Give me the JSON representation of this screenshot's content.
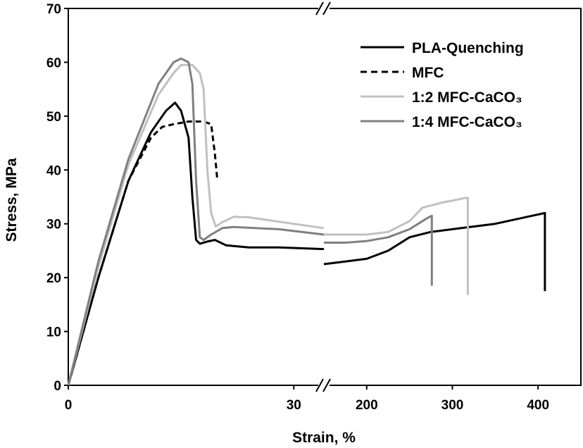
{
  "chart_data": {
    "type": "line",
    "title": "",
    "xlabel": "Strain, %",
    "ylabel": "Stress, MPa",
    "x_axis_break": true,
    "x_segments": [
      {
        "xlim": [
          0,
          34
        ],
        "ticks": [
          "0",
          "30"
        ]
      },
      {
        "xlim": [
          150,
          450
        ],
        "ticks": [
          "200",
          "300",
          "400"
        ]
      }
    ],
    "ylim": [
      0,
      70
    ],
    "yticks": [
      "0",
      "10",
      "20",
      "30",
      "40",
      "50",
      "60",
      "70"
    ],
    "grid": false,
    "legend_position": "top-right",
    "series": [
      {
        "name": "PLA-Quenching",
        "color": "#000000",
        "dash": "solid",
        "points": [
          [
            0,
            0
          ],
          [
            4,
            20
          ],
          [
            8,
            38
          ],
          [
            11,
            47
          ],
          [
            13,
            51
          ],
          [
            14.2,
            52.5
          ],
          [
            15,
            51
          ],
          [
            16,
            46
          ],
          [
            16.5,
            35
          ],
          [
            17,
            27
          ],
          [
            17.5,
            26.3
          ],
          [
            18.5,
            26.7
          ],
          [
            19.5,
            27
          ],
          [
            21,
            26
          ],
          [
            24,
            25.6
          ],
          [
            28,
            25.6
          ],
          [
            34,
            25.3
          ],
          [
            null,
            null
          ],
          [
            150,
            22.5
          ],
          [
            175,
            23
          ],
          [
            200,
            23.5
          ],
          [
            225,
            25
          ],
          [
            250,
            27.5
          ],
          [
            275,
            28.5
          ],
          [
            300,
            29
          ],
          [
            350,
            30
          ],
          [
            408,
            32
          ],
          [
            408,
            17.5
          ]
        ]
      },
      {
        "name": "MFC",
        "color": "#000000",
        "dash": "dashed",
        "points": [
          [
            0,
            0
          ],
          [
            4,
            20
          ],
          [
            8,
            38
          ],
          [
            11,
            46
          ],
          [
            12.5,
            48
          ],
          [
            14,
            48.5
          ],
          [
            16,
            49
          ],
          [
            18,
            49
          ],
          [
            19,
            48.5
          ],
          [
            19.5,
            43
          ],
          [
            19.8,
            38.5
          ]
        ]
      },
      {
        "name": "1:2 MFC-CaCO₃",
        "color": "#c0c0c0",
        "dash": "solid",
        "points": [
          [
            0,
            0
          ],
          [
            4,
            22
          ],
          [
            8,
            41
          ],
          [
            12,
            54
          ],
          [
            14,
            58
          ],
          [
            15,
            59.5
          ],
          [
            16.5,
            59.5
          ],
          [
            17.5,
            58
          ],
          [
            18,
            55
          ],
          [
            18.5,
            40
          ],
          [
            19,
            32
          ],
          [
            19.6,
            29.5
          ],
          [
            20.5,
            30.3
          ],
          [
            22,
            31.3
          ],
          [
            24,
            31.2
          ],
          [
            28,
            30.4
          ],
          [
            34,
            29.2
          ],
          [
            null,
            null
          ],
          [
            150,
            28
          ],
          [
            175,
            28
          ],
          [
            200,
            28
          ],
          [
            225,
            28.5
          ],
          [
            250,
            30.5
          ],
          [
            265,
            33
          ],
          [
            290,
            34
          ],
          [
            300,
            34.3
          ],
          [
            315,
            34.8
          ],
          [
            318,
            34.8
          ],
          [
            318,
            16.8
          ]
        ]
      },
      {
        "name": "1:4 MFC-CaCO₃",
        "color": "#7f7f7f",
        "dash": "solid",
        "points": [
          [
            0,
            0
          ],
          [
            4,
            23
          ],
          [
            8,
            42
          ],
          [
            12,
            56
          ],
          [
            14,
            60
          ],
          [
            15,
            60.7
          ],
          [
            16,
            60
          ],
          [
            16.5,
            56
          ],
          [
            17,
            38
          ],
          [
            17.5,
            27.5
          ],
          [
            18,
            27
          ],
          [
            19,
            28
          ],
          [
            20.5,
            29.2
          ],
          [
            22,
            29.4
          ],
          [
            28,
            29
          ],
          [
            34,
            28
          ],
          [
            null,
            null
          ],
          [
            150,
            26.5
          ],
          [
            175,
            26.5
          ],
          [
            200,
            26.8
          ],
          [
            225,
            27.5
          ],
          [
            250,
            29
          ],
          [
            270,
            31
          ],
          [
            276,
            31.5
          ],
          [
            276,
            18.5
          ]
        ]
      }
    ]
  }
}
